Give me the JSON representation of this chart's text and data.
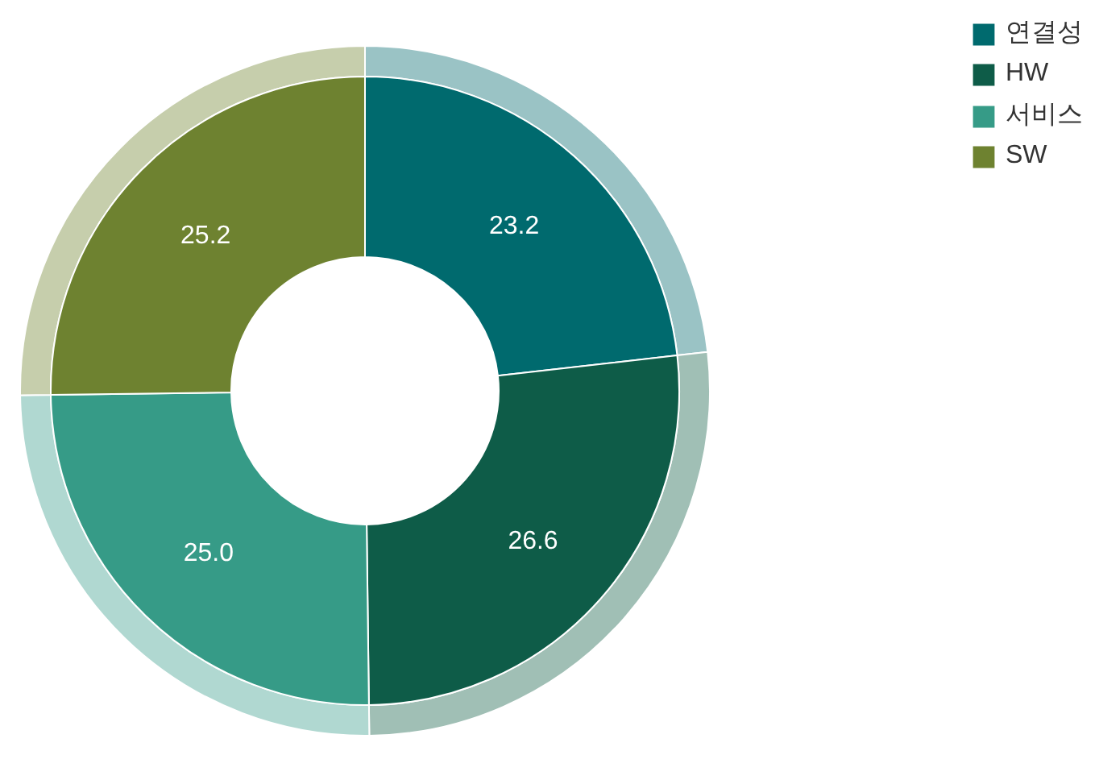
{
  "chart_data": {
    "type": "donut",
    "categories": [
      "연결성",
      "HW",
      "서비스",
      "SW"
    ],
    "series": [
      {
        "colors": [
          "#9ac3c5",
          "#a0bfb5",
          "#b0d8d1",
          "#c6ceac"
        ],
        "values": [
          23.2,
          26.6,
          25.0,
          25.2
        ]
      },
      {
        "colors": [
          "#006a6e",
          "#0e5c48",
          "#369b87",
          "#6e8230"
        ],
        "values": [
          23.2,
          26.6,
          25.0,
          25.2
        ],
        "value_labels": [
          "23.2",
          "26.6",
          "25.0",
          "25.2"
        ]
      }
    ],
    "legend": "top right"
  }
}
